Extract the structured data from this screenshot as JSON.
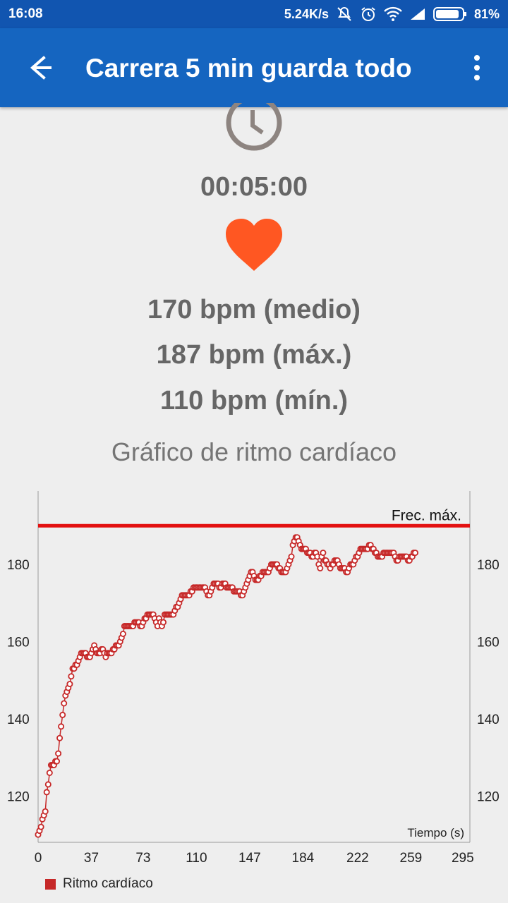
{
  "status_bar": {
    "time": "16:08",
    "net_speed": "5.24K/s",
    "battery_percent": "81%",
    "icons": [
      "mute-icon",
      "alarm-icon",
      "wifi-icon",
      "signal-icon",
      "battery-icon"
    ]
  },
  "app_bar": {
    "title": "Carrera 5 min guarda todo",
    "back_icon": "arrow-left-icon",
    "menu_icon": "more-vertical-icon"
  },
  "summary": {
    "duration": "00:05:00",
    "avg": "170 bpm (medio)",
    "max": "187 bpm (máx.)",
    "min": "110 bpm (mín.)",
    "heart_color": "#ff5722"
  },
  "chart_title": "Gráfico de ritmo cardíaco",
  "chart_data": {
    "type": "line",
    "xlabel": "Tiempo (s)",
    "ylabel": "",
    "xlim": [
      0,
      300
    ],
    "ylim": [
      108,
      199
    ],
    "x_ticks": [
      0,
      37,
      73,
      110,
      147,
      184,
      222,
      259,
      295
    ],
    "y_ticks": [
      120,
      140,
      160,
      180
    ],
    "max_line": {
      "value": 190,
      "label": "Frec. máx.",
      "color": "#e31010"
    },
    "series": [
      {
        "name": "Ritmo cardíaco",
        "color": "#c62828",
        "points": [
          [
            0,
            110
          ],
          [
            1,
            111
          ],
          [
            2,
            112
          ],
          [
            3,
            114
          ],
          [
            4,
            115
          ],
          [
            5,
            116
          ],
          [
            6,
            121
          ],
          [
            7,
            123
          ],
          [
            8,
            126
          ],
          [
            9,
            128
          ],
          [
            10,
            128
          ],
          [
            11,
            128
          ],
          [
            12,
            129
          ],
          [
            13,
            129
          ],
          [
            14,
            131
          ],
          [
            15,
            135
          ],
          [
            16,
            138
          ],
          [
            17,
            141
          ],
          [
            18,
            144
          ],
          [
            19,
            146
          ],
          [
            20,
            147
          ],
          [
            21,
            148
          ],
          [
            22,
            149
          ],
          [
            23,
            151
          ],
          [
            24,
            153
          ],
          [
            25,
            153
          ],
          [
            26,
            154
          ],
          [
            27,
            154
          ],
          [
            28,
            155
          ],
          [
            29,
            156
          ],
          [
            30,
            157
          ],
          [
            31,
            157
          ],
          [
            32,
            157
          ],
          [
            33,
            157
          ],
          [
            34,
            156
          ],
          [
            35,
            156
          ],
          [
            36,
            156
          ],
          [
            37,
            157
          ],
          [
            38,
            158
          ],
          [
            39,
            159
          ],
          [
            40,
            158
          ],
          [
            41,
            157
          ],
          [
            42,
            157
          ],
          [
            43,
            157
          ],
          [
            44,
            158
          ],
          [
            45,
            158
          ],
          [
            46,
            157
          ],
          [
            47,
            156
          ],
          [
            48,
            157
          ],
          [
            49,
            157
          ],
          [
            50,
            157
          ],
          [
            51,
            157
          ],
          [
            52,
            158
          ],
          [
            53,
            158
          ],
          [
            54,
            159
          ],
          [
            55,
            159
          ],
          [
            56,
            159
          ],
          [
            57,
            160
          ],
          [
            58,
            161
          ],
          [
            59,
            162
          ],
          [
            60,
            164
          ],
          [
            61,
            164
          ],
          [
            62,
            164
          ],
          [
            63,
            164
          ],
          [
            64,
            164
          ],
          [
            65,
            164
          ],
          [
            66,
            164
          ],
          [
            67,
            165
          ],
          [
            68,
            165
          ],
          [
            69,
            165
          ],
          [
            70,
            165
          ],
          [
            71,
            164
          ],
          [
            72,
            164
          ],
          [
            73,
            165
          ],
          [
            74,
            166
          ],
          [
            75,
            166
          ],
          [
            76,
            167
          ],
          [
            77,
            167
          ],
          [
            78,
            167
          ],
          [
            79,
            167
          ],
          [
            80,
            167
          ],
          [
            81,
            166
          ],
          [
            82,
            165
          ],
          [
            83,
            164
          ],
          [
            84,
            166
          ],
          [
            85,
            165
          ],
          [
            86,
            164
          ],
          [
            87,
            165
          ],
          [
            88,
            167
          ],
          [
            89,
            167
          ],
          [
            90,
            167
          ],
          [
            91,
            167
          ],
          [
            92,
            167
          ],
          [
            93,
            167
          ],
          [
            94,
            167
          ],
          [
            95,
            168
          ],
          [
            96,
            169
          ],
          [
            97,
            169
          ],
          [
            98,
            170
          ],
          [
            99,
            171
          ],
          [
            100,
            172
          ],
          [
            101,
            172
          ],
          [
            102,
            172
          ],
          [
            103,
            172
          ],
          [
            104,
            172
          ],
          [
            105,
            172
          ],
          [
            106,
            173
          ],
          [
            107,
            173
          ],
          [
            108,
            174
          ],
          [
            109,
            174
          ],
          [
            110,
            174
          ],
          [
            111,
            174
          ],
          [
            112,
            174
          ],
          [
            113,
            174
          ],
          [
            114,
            174
          ],
          [
            115,
            174
          ],
          [
            116,
            174
          ],
          [
            117,
            173
          ],
          [
            118,
            172
          ],
          [
            119,
            172
          ],
          [
            120,
            173
          ],
          [
            121,
            174
          ],
          [
            122,
            175
          ],
          [
            123,
            175
          ],
          [
            124,
            175
          ],
          [
            125,
            175
          ],
          [
            126,
            174
          ],
          [
            127,
            174
          ],
          [
            128,
            175
          ],
          [
            129,
            175
          ],
          [
            130,
            175
          ],
          [
            131,
            174
          ],
          [
            132,
            174
          ],
          [
            133,
            174
          ],
          [
            134,
            174
          ],
          [
            135,
            174
          ],
          [
            136,
            173
          ],
          [
            137,
            173
          ],
          [
            138,
            173
          ],
          [
            139,
            173
          ],
          [
            140,
            173
          ],
          [
            141,
            172
          ],
          [
            142,
            172
          ],
          [
            143,
            173
          ],
          [
            144,
            174
          ],
          [
            145,
            175
          ],
          [
            146,
            176
          ],
          [
            147,
            177
          ],
          [
            148,
            178
          ],
          [
            149,
            178
          ],
          [
            150,
            177
          ],
          [
            151,
            176
          ],
          [
            152,
            176
          ],
          [
            153,
            176
          ],
          [
            154,
            177
          ],
          [
            155,
            177
          ],
          [
            156,
            178
          ],
          [
            157,
            178
          ],
          [
            158,
            178
          ],
          [
            159,
            178
          ],
          [
            160,
            178
          ],
          [
            161,
            179
          ],
          [
            162,
            180
          ],
          [
            163,
            180
          ],
          [
            164,
            180
          ],
          [
            165,
            180
          ],
          [
            166,
            180
          ],
          [
            167,
            179
          ],
          [
            168,
            179
          ],
          [
            169,
            178
          ],
          [
            170,
            178
          ],
          [
            171,
            178
          ],
          [
            172,
            178
          ],
          [
            173,
            179
          ],
          [
            174,
            180
          ],
          [
            175,
            181
          ],
          [
            176,
            182
          ],
          [
            177,
            185
          ],
          [
            178,
            186
          ],
          [
            179,
            187
          ],
          [
            180,
            187
          ],
          [
            181,
            186
          ],
          [
            182,
            185
          ],
          [
            183,
            184
          ],
          [
            184,
            184
          ],
          [
            185,
            184
          ],
          [
            186,
            184
          ],
          [
            187,
            183
          ],
          [
            188,
            183
          ],
          [
            189,
            183
          ],
          [
            190,
            182
          ],
          [
            191,
            182
          ],
          [
            192,
            183
          ],
          [
            193,
            183
          ],
          [
            194,
            182
          ],
          [
            195,
            180
          ],
          [
            196,
            179
          ],
          [
            197,
            182
          ],
          [
            198,
            183
          ],
          [
            199,
            181
          ],
          [
            200,
            181
          ],
          [
            201,
            180
          ],
          [
            202,
            180
          ],
          [
            203,
            179
          ],
          [
            204,
            180
          ],
          [
            205,
            180
          ],
          [
            206,
            181
          ],
          [
            207,
            181
          ],
          [
            208,
            181
          ],
          [
            209,
            180
          ],
          [
            210,
            179
          ],
          [
            211,
            179
          ],
          [
            212,
            179
          ],
          [
            213,
            179
          ],
          [
            214,
            178
          ],
          [
            215,
            178
          ],
          [
            216,
            179
          ],
          [
            217,
            180
          ],
          [
            218,
            180
          ],
          [
            219,
            180
          ],
          [
            220,
            181
          ],
          [
            221,
            182
          ],
          [
            222,
            182
          ],
          [
            223,
            183
          ],
          [
            224,
            184
          ],
          [
            225,
            184
          ],
          [
            226,
            184
          ],
          [
            227,
            184
          ],
          [
            228,
            184
          ],
          [
            229,
            184
          ],
          [
            230,
            185
          ],
          [
            231,
            185
          ],
          [
            232,
            184
          ],
          [
            233,
            184
          ],
          [
            234,
            183
          ],
          [
            235,
            183
          ],
          [
            236,
            182
          ],
          [
            237,
            182
          ],
          [
            238,
            182
          ],
          [
            239,
            182
          ],
          [
            240,
            183
          ],
          [
            241,
            183
          ],
          [
            242,
            183
          ],
          [
            243,
            183
          ],
          [
            244,
            183
          ],
          [
            245,
            183
          ],
          [
            246,
            183
          ],
          [
            247,
            183
          ],
          [
            248,
            182
          ],
          [
            249,
            181
          ],
          [
            250,
            181
          ],
          [
            251,
            182
          ],
          [
            252,
            182
          ],
          [
            253,
            182
          ],
          [
            254,
            182
          ],
          [
            255,
            182
          ],
          [
            256,
            182
          ],
          [
            257,
            181
          ],
          [
            258,
            181
          ],
          [
            259,
            182
          ],
          [
            260,
            182
          ],
          [
            261,
            183
          ],
          [
            262,
            183
          ]
        ]
      }
    ],
    "legend": {
      "position": "bottom-left",
      "label": "Ritmo cardíaco"
    }
  }
}
